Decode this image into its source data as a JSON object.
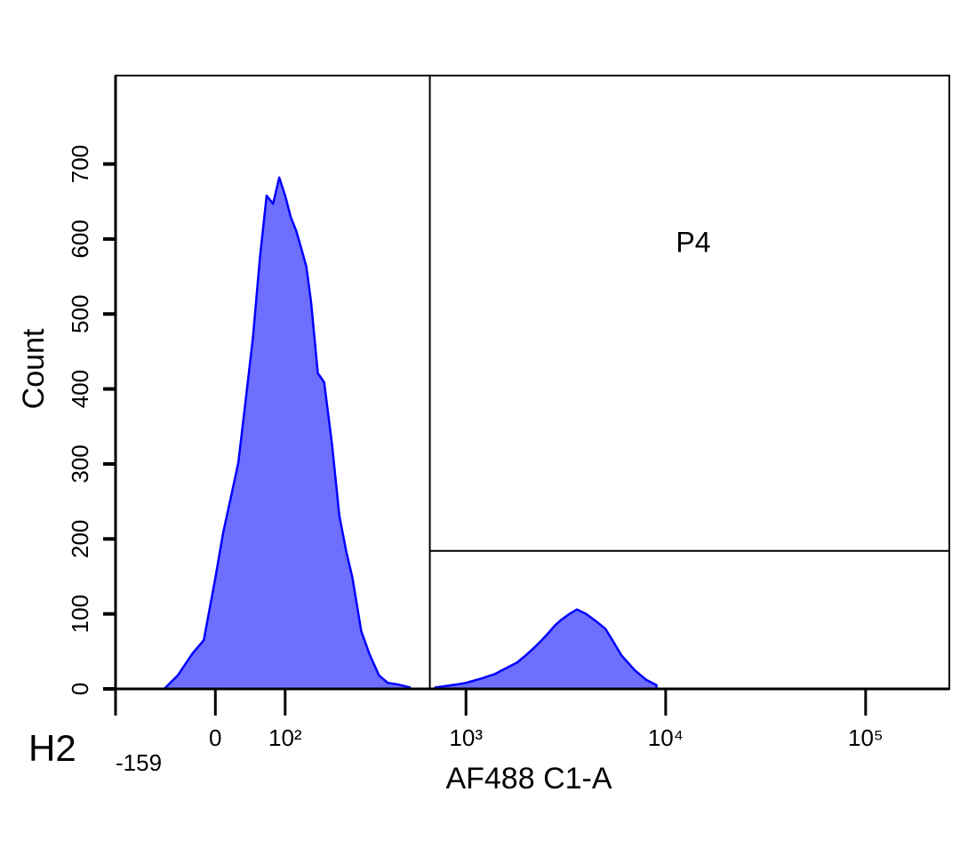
{
  "chart_data": {
    "type": "histogram",
    "x_label": "AF488 C1-A",
    "y_label": "Count",
    "corner_label": "H2",
    "xscale": "biexponential",
    "xlim": [
      -159,
      262144
    ],
    "ylim": [
      0,
      818
    ],
    "xticks": [
      {
        "value": -159,
        "label": "-159"
      },
      0,
      {
        "value": 100,
        "label": "10²"
      },
      {
        "value": 1000,
        "label": "10³"
      },
      {
        "value": 10000,
        "label": "10⁴"
      },
      {
        "value": 100000,
        "label": "10⁵"
      }
    ],
    "yticks": [
      0,
      100,
      200,
      300,
      400,
      500,
      600,
      700
    ],
    "series": [
      {
        "color": "#0000ff",
        "fill": "#6e6eff",
        "x": [
          -70,
          -50,
          -30,
          -15,
          0,
          10,
          20,
          30,
          40,
          50,
          60,
          70,
          80,
          90,
          100,
          110,
          120,
          130,
          140,
          150,
          165,
          180,
          200,
          220,
          240,
          260,
          290,
          320,
          360,
          400,
          450,
          520,
          600,
          700,
          800,
          900,
          1000,
          1200,
          1400,
          1600,
          1800,
          2000,
          2200,
          2400,
          2600,
          2800,
          3000,
          3300,
          3600,
          4000,
          4500,
          5000,
          5500,
          6000,
          7000,
          8000,
          9000
        ],
        "values": [
          0,
          18,
          47,
          65,
          148,
          208,
          255,
          302,
          386,
          469,
          575,
          658,
          647,
          682,
          658,
          629,
          611,
          587,
          563,
          516,
          421,
          409,
          326,
          231,
          184,
          148,
          77,
          47,
          18,
          8,
          6,
          2,
          null,
          2,
          4,
          6,
          8,
          14,
          20,
          28,
          35,
          45,
          55,
          65,
          75,
          85,
          92,
          100,
          106,
          100,
          90,
          80,
          62,
          45,
          25,
          12,
          5
        ]
      }
    ],
    "gate": {
      "label": "P4",
      "x": 657,
      "y": 184
    }
  }
}
